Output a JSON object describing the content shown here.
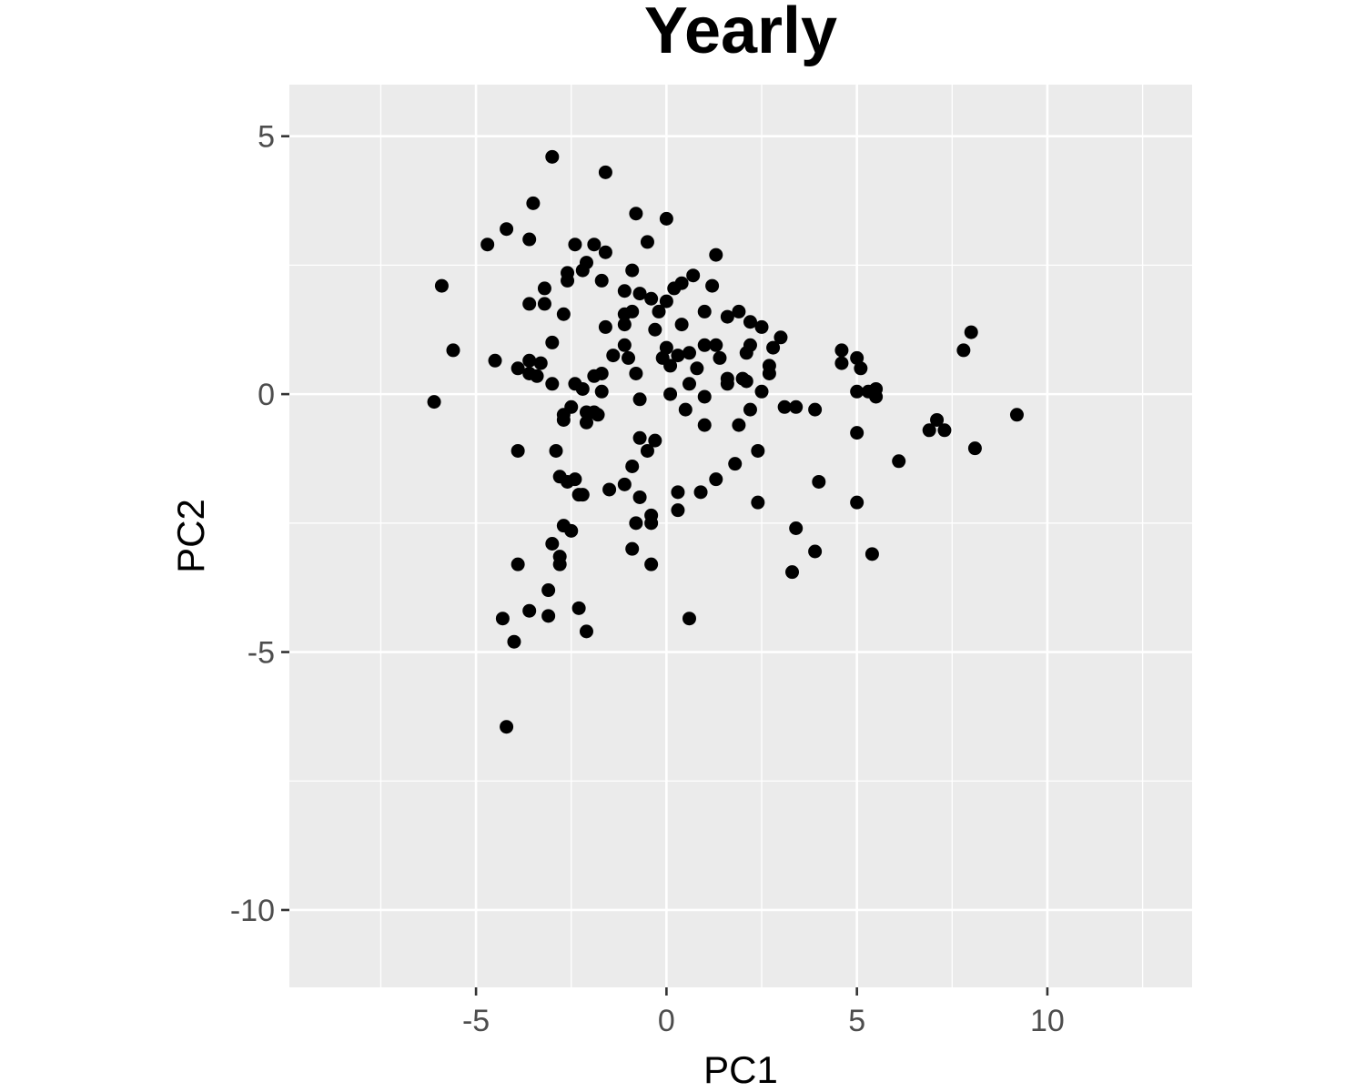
{
  "chart_data": {
    "type": "scatter",
    "title": "Yearly",
    "xlabel": "PC1",
    "ylabel": "PC2",
    "xlim": [
      -9.9,
      13.8
    ],
    "ylim": [
      -11.5,
      6.0
    ],
    "x_ticks": [
      -5,
      0,
      5,
      10
    ],
    "x_tick_labels": [
      "-5",
      "0",
      "5",
      "10"
    ],
    "y_ticks": [
      -10,
      -5,
      0,
      5
    ],
    "y_tick_labels": [
      "-10",
      "-5",
      "0",
      "5"
    ],
    "grid": true,
    "legend": "none",
    "colors": {
      "panel_bg": "#ebebeb",
      "grid": "#ffffff",
      "point": "#000000",
      "tick_text": "#4d4d4d"
    },
    "points": [
      [
        -3.0,
        4.6
      ],
      [
        -1.6,
        4.3
      ],
      [
        -3.5,
        3.7
      ],
      [
        -0.8,
        3.5
      ],
      [
        0.0,
        3.4
      ],
      [
        -4.2,
        3.2
      ],
      [
        -4.7,
        2.9
      ],
      [
        -3.6,
        3.0
      ],
      [
        -2.4,
        2.9
      ],
      [
        -1.9,
        2.9
      ],
      [
        -0.5,
        2.95
      ],
      [
        -1.6,
        2.75
      ],
      [
        1.3,
        2.7
      ],
      [
        -2.1,
        2.55
      ],
      [
        -0.9,
        2.4
      ],
      [
        -2.2,
        2.4
      ],
      [
        -2.6,
        2.35
      ],
      [
        -2.6,
        2.2
      ],
      [
        -1.7,
        2.2
      ],
      [
        0.7,
        2.3
      ],
      [
        0.4,
        2.15
      ],
      [
        0.2,
        2.05
      ],
      [
        1.2,
        2.1
      ],
      [
        -5.9,
        2.1
      ],
      [
        -3.2,
        2.05
      ],
      [
        -1.1,
        2.0
      ],
      [
        -0.7,
        1.95
      ],
      [
        -0.4,
        1.85
      ],
      [
        0.0,
        1.8
      ],
      [
        -3.6,
        1.75
      ],
      [
        -3.2,
        1.75
      ],
      [
        -1.1,
        1.55
      ],
      [
        -0.9,
        1.6
      ],
      [
        -0.2,
        1.6
      ],
      [
        1.0,
        1.6
      ],
      [
        1.6,
        1.5
      ],
      [
        1.9,
        1.6
      ],
      [
        2.2,
        1.4
      ],
      [
        2.5,
        1.3
      ],
      [
        -2.7,
        1.55
      ],
      [
        -1.6,
        1.3
      ],
      [
        -1.1,
        1.35
      ],
      [
        -0.3,
        1.25
      ],
      [
        0.4,
        1.35
      ],
      [
        3.0,
        1.1
      ],
      [
        -3.0,
        1.0
      ],
      [
        -1.1,
        0.95
      ],
      [
        0.0,
        0.9
      ],
      [
        1.0,
        0.95
      ],
      [
        1.3,
        0.95
      ],
      [
        2.2,
        0.95
      ],
      [
        2.8,
        0.9
      ],
      [
        -5.6,
        0.85
      ],
      [
        -1.4,
        0.75
      ],
      [
        -1.0,
        0.7
      ],
      [
        -0.1,
        0.7
      ],
      [
        0.3,
        0.75
      ],
      [
        0.6,
        0.8
      ],
      [
        1.4,
        0.7
      ],
      [
        2.1,
        0.8
      ],
      [
        4.6,
        0.85
      ],
      [
        5.0,
        0.7
      ],
      [
        7.8,
        0.85
      ],
      [
        8.0,
        1.2
      ],
      [
        -4.5,
        0.65
      ],
      [
        -3.6,
        0.65
      ],
      [
        -3.3,
        0.6
      ],
      [
        -3.9,
        0.5
      ],
      [
        0.1,
        0.55
      ],
      [
        0.8,
        0.5
      ],
      [
        2.7,
        0.55
      ],
      [
        4.6,
        0.6
      ],
      [
        5.1,
        0.5
      ],
      [
        -3.6,
        0.4
      ],
      [
        -3.4,
        0.35
      ],
      [
        -1.7,
        0.4
      ],
      [
        -1.9,
        0.35
      ],
      [
        -0.8,
        0.4
      ],
      [
        1.6,
        0.3
      ],
      [
        2.0,
        0.3
      ],
      [
        2.7,
        0.4
      ],
      [
        -3.0,
        0.2
      ],
      [
        -2.4,
        0.2
      ],
      [
        -2.2,
        0.1
      ],
      [
        1.6,
        0.2
      ],
      [
        0.6,
        0.2
      ],
      [
        2.1,
        0.25
      ],
      [
        -1.7,
        0.05
      ],
      [
        0.1,
        0.0
      ],
      [
        1.0,
        -0.05
      ],
      [
        2.5,
        0.05
      ],
      [
        5.0,
        0.05
      ],
      [
        5.3,
        0.05
      ],
      [
        5.5,
        0.1
      ],
      [
        -0.7,
        -0.1
      ],
      [
        5.5,
        -0.05
      ],
      [
        -6.1,
        -0.15
      ],
      [
        -2.5,
        -0.25
      ],
      [
        3.1,
        -0.25
      ],
      [
        3.4,
        -0.25
      ],
      [
        3.9,
        -0.3
      ],
      [
        -2.1,
        -0.35
      ],
      [
        -1.9,
        -0.35
      ],
      [
        -1.8,
        -0.4
      ],
      [
        -2.7,
        -0.4
      ],
      [
        0.5,
        -0.3
      ],
      [
        2.2,
        -0.3
      ],
      [
        -2.7,
        -0.5
      ],
      [
        -2.1,
        -0.55
      ],
      [
        7.1,
        -0.5
      ],
      [
        9.2,
        -0.4
      ],
      [
        1.9,
        -0.6
      ],
      [
        1.0,
        -0.6
      ],
      [
        6.9,
        -0.7
      ],
      [
        7.3,
        -0.7
      ],
      [
        5.0,
        -0.75
      ],
      [
        -0.7,
        -0.85
      ],
      [
        -0.3,
        -0.9
      ],
      [
        -0.5,
        -1.1
      ],
      [
        -3.9,
        -1.1
      ],
      [
        -2.9,
        -1.1
      ],
      [
        2.4,
        -1.1
      ],
      [
        8.1,
        -1.05
      ],
      [
        6.1,
        -1.3
      ],
      [
        -0.9,
        -1.4
      ],
      [
        1.8,
        -1.35
      ],
      [
        -2.8,
        -1.6
      ],
      [
        -2.6,
        -1.7
      ],
      [
        -2.4,
        -1.65
      ],
      [
        -1.1,
        -1.75
      ],
      [
        1.3,
        -1.65
      ],
      [
        4.0,
        -1.7
      ],
      [
        -1.5,
        -1.85
      ],
      [
        0.9,
        -1.9
      ],
      [
        0.3,
        -1.9
      ],
      [
        -2.3,
        -1.95
      ],
      [
        -2.2,
        -1.95
      ],
      [
        -0.7,
        -2.0
      ],
      [
        2.4,
        -2.1
      ],
      [
        5.0,
        -2.1
      ],
      [
        0.3,
        -2.25
      ],
      [
        -0.4,
        -2.35
      ],
      [
        -0.4,
        -2.5
      ],
      [
        -0.8,
        -2.5
      ],
      [
        -2.7,
        -2.55
      ],
      [
        -2.5,
        -2.65
      ],
      [
        3.4,
        -2.6
      ],
      [
        -3.0,
        -2.9
      ],
      [
        -0.9,
        -3.0
      ],
      [
        3.9,
        -3.05
      ],
      [
        5.4,
        -3.1
      ],
      [
        -2.8,
        -3.15
      ],
      [
        -2.8,
        -3.3
      ],
      [
        -3.9,
        -3.3
      ],
      [
        -0.4,
        -3.3
      ],
      [
        3.3,
        -3.45
      ],
      [
        -3.1,
        -3.8
      ],
      [
        -2.3,
        -4.15
      ],
      [
        -3.6,
        -4.2
      ],
      [
        -3.1,
        -4.3
      ],
      [
        -4.3,
        -4.35
      ],
      [
        0.6,
        -4.35
      ],
      [
        -2.1,
        -4.6
      ],
      [
        -4.0,
        -4.8
      ],
      [
        -4.2,
        -6.45
      ]
    ]
  }
}
